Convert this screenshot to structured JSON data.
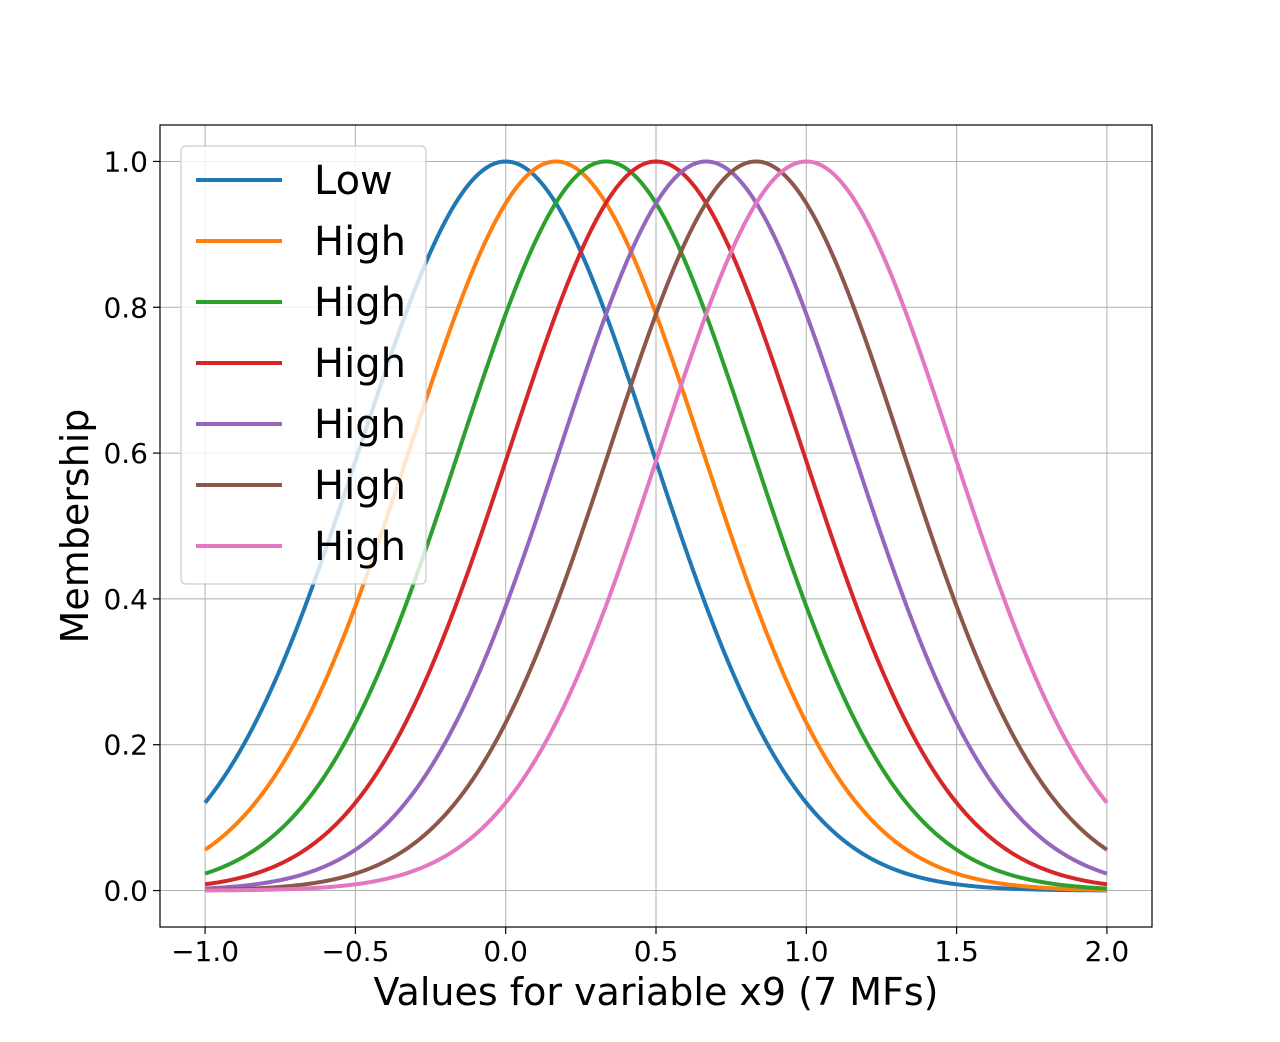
{
  "chart_data": {
    "type": "line",
    "title": "",
    "xlabel": "Values for variable x9 (7 MFs)",
    "ylabel": "Membership",
    "xlim": [
      -1.15,
      2.15
    ],
    "ylim": [
      -0.05,
      1.05
    ],
    "xticks": [
      -1.0,
      -0.5,
      0.0,
      0.5,
      1.0,
      1.5,
      2.0
    ],
    "xtick_labels": [
      "−1.0",
      "−0.5",
      "0.0",
      "0.5",
      "1.0",
      "1.5",
      "2.0"
    ],
    "yticks": [
      0.0,
      0.2,
      0.4,
      0.6,
      0.8,
      1.0
    ],
    "ytick_labels": [
      "0.0",
      "0.2",
      "0.4",
      "0.6",
      "0.8",
      "1.0"
    ],
    "grid": true,
    "legend_position": "upper-left",
    "x_range": [
      -1.0,
      2.0
    ],
    "curve_shape": "gaussian",
    "series": [
      {
        "name": "Low",
        "color": "#1f77b4",
        "center": 0.0,
        "sigma": 0.486
      },
      {
        "name": "High",
        "color": "#ff7f0e",
        "center": 0.167,
        "sigma": 0.486
      },
      {
        "name": "High",
        "color": "#2ca02c",
        "center": 0.333,
        "sigma": 0.486
      },
      {
        "name": "High",
        "color": "#d62728",
        "center": 0.5,
        "sigma": 0.486
      },
      {
        "name": "High",
        "color": "#9467bd",
        "center": 0.667,
        "sigma": 0.486
      },
      {
        "name": "High",
        "color": "#8c564b",
        "center": 0.833,
        "sigma": 0.486
      },
      {
        "name": "High",
        "color": "#e377c2",
        "center": 1.0,
        "sigma": 0.486
      }
    ]
  }
}
